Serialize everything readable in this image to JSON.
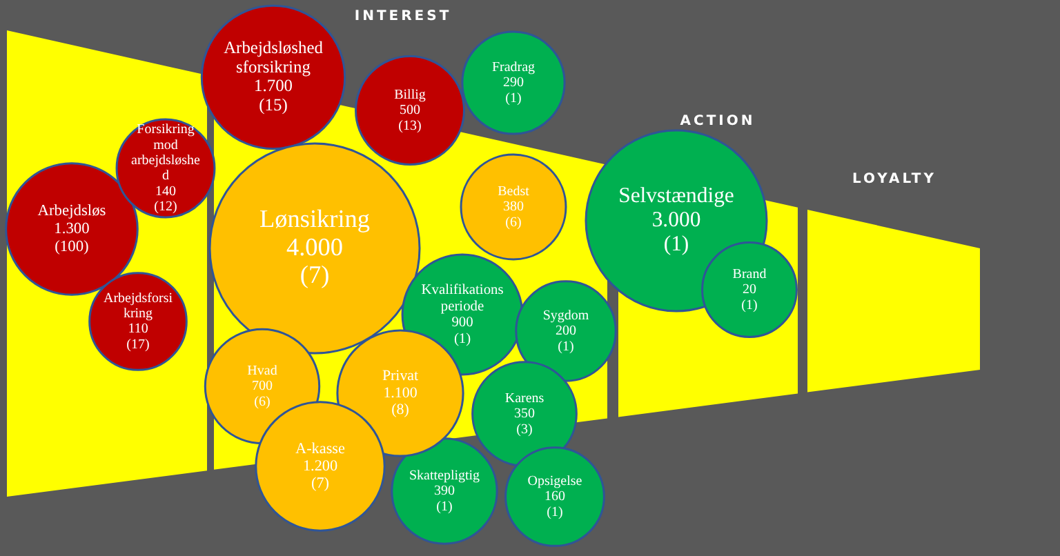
{
  "chart_data": {
    "type": "other",
    "categories": [
      "Arbejdsløs",
      "Forsikring mod arbejdsløshed",
      "Arbejdsløshedsforsikring",
      "Arbejdsforsikring",
      "Lønsikring",
      "Billig",
      "Fradrag",
      "Bedst",
      "Selvstændige",
      "Kvalifikationsperiode",
      "Sygdom",
      "Karens",
      "Skattepligtig",
      "Opsigelse",
      "Hvad",
      "Privat",
      "A-kasse",
      "Brand"
    ],
    "values": [
      1300,
      140,
      1700,
      110,
      4000,
      500,
      290,
      380,
      3000,
      900,
      200,
      350,
      390,
      160,
      700,
      1100,
      1200,
      20
    ],
    "value_labels": [
      "1.300",
      "140",
      "1.700",
      "110",
      "4.000",
      "500",
      "290",
      "380",
      "3.000",
      "900",
      "200",
      "350",
      "390",
      "160",
      "700",
      "1.100",
      "1.200",
      "20"
    ],
    "colors": [
      "#c00000",
      "#c00000",
      "#c00000",
      "#c00000",
      "#ffc000",
      "#c00000",
      "#00b050",
      "#ffc000",
      "#00b050",
      "#00b050",
      "#00b050",
      "#00b050",
      "#00b050",
      "#00b050",
      "#ffc000",
      "#ffc000",
      "#ffc000",
      "#00b050"
    ],
    "annotations": [
      "INTEREST",
      "ACTION",
      "LOYALTY",
      {
        "text": "(100)",
        "x": "Arbejdsløs"
      },
      {
        "text": "(12)",
        "x": "Forsikring mod arbejdsløshed"
      },
      {
        "text": "(15)",
        "x": "Arbejdsløshedsforsikring"
      },
      {
        "text": "(17)",
        "x": "Arbejdsforsikring"
      },
      {
        "text": "(7)",
        "x": "Lønsikring"
      },
      {
        "text": "(13)",
        "x": "Billig"
      },
      {
        "text": "(1)",
        "x": "Fradrag"
      },
      {
        "text": "(6)",
        "x": "Bedst"
      },
      {
        "text": "(1)",
        "x": "Selvstændige"
      },
      {
        "text": "(1)",
        "x": "Kvalifikationsperiode"
      },
      {
        "text": "(1)",
        "x": "Sygdom"
      },
      {
        "text": "(3)",
        "x": "Karens"
      },
      {
        "text": "(1)",
        "x": "Skattepligtig"
      },
      {
        "text": "(1)",
        "x": "Opsigelse"
      },
      {
        "text": "(6)",
        "x": "Hvad"
      },
      {
        "text": "(8)",
        "x": "Privat"
      },
      {
        "text": "(7)",
        "x": "A-kasse"
      },
      {
        "text": "(1)",
        "x": "Brand"
      }
    ]
  }
}
